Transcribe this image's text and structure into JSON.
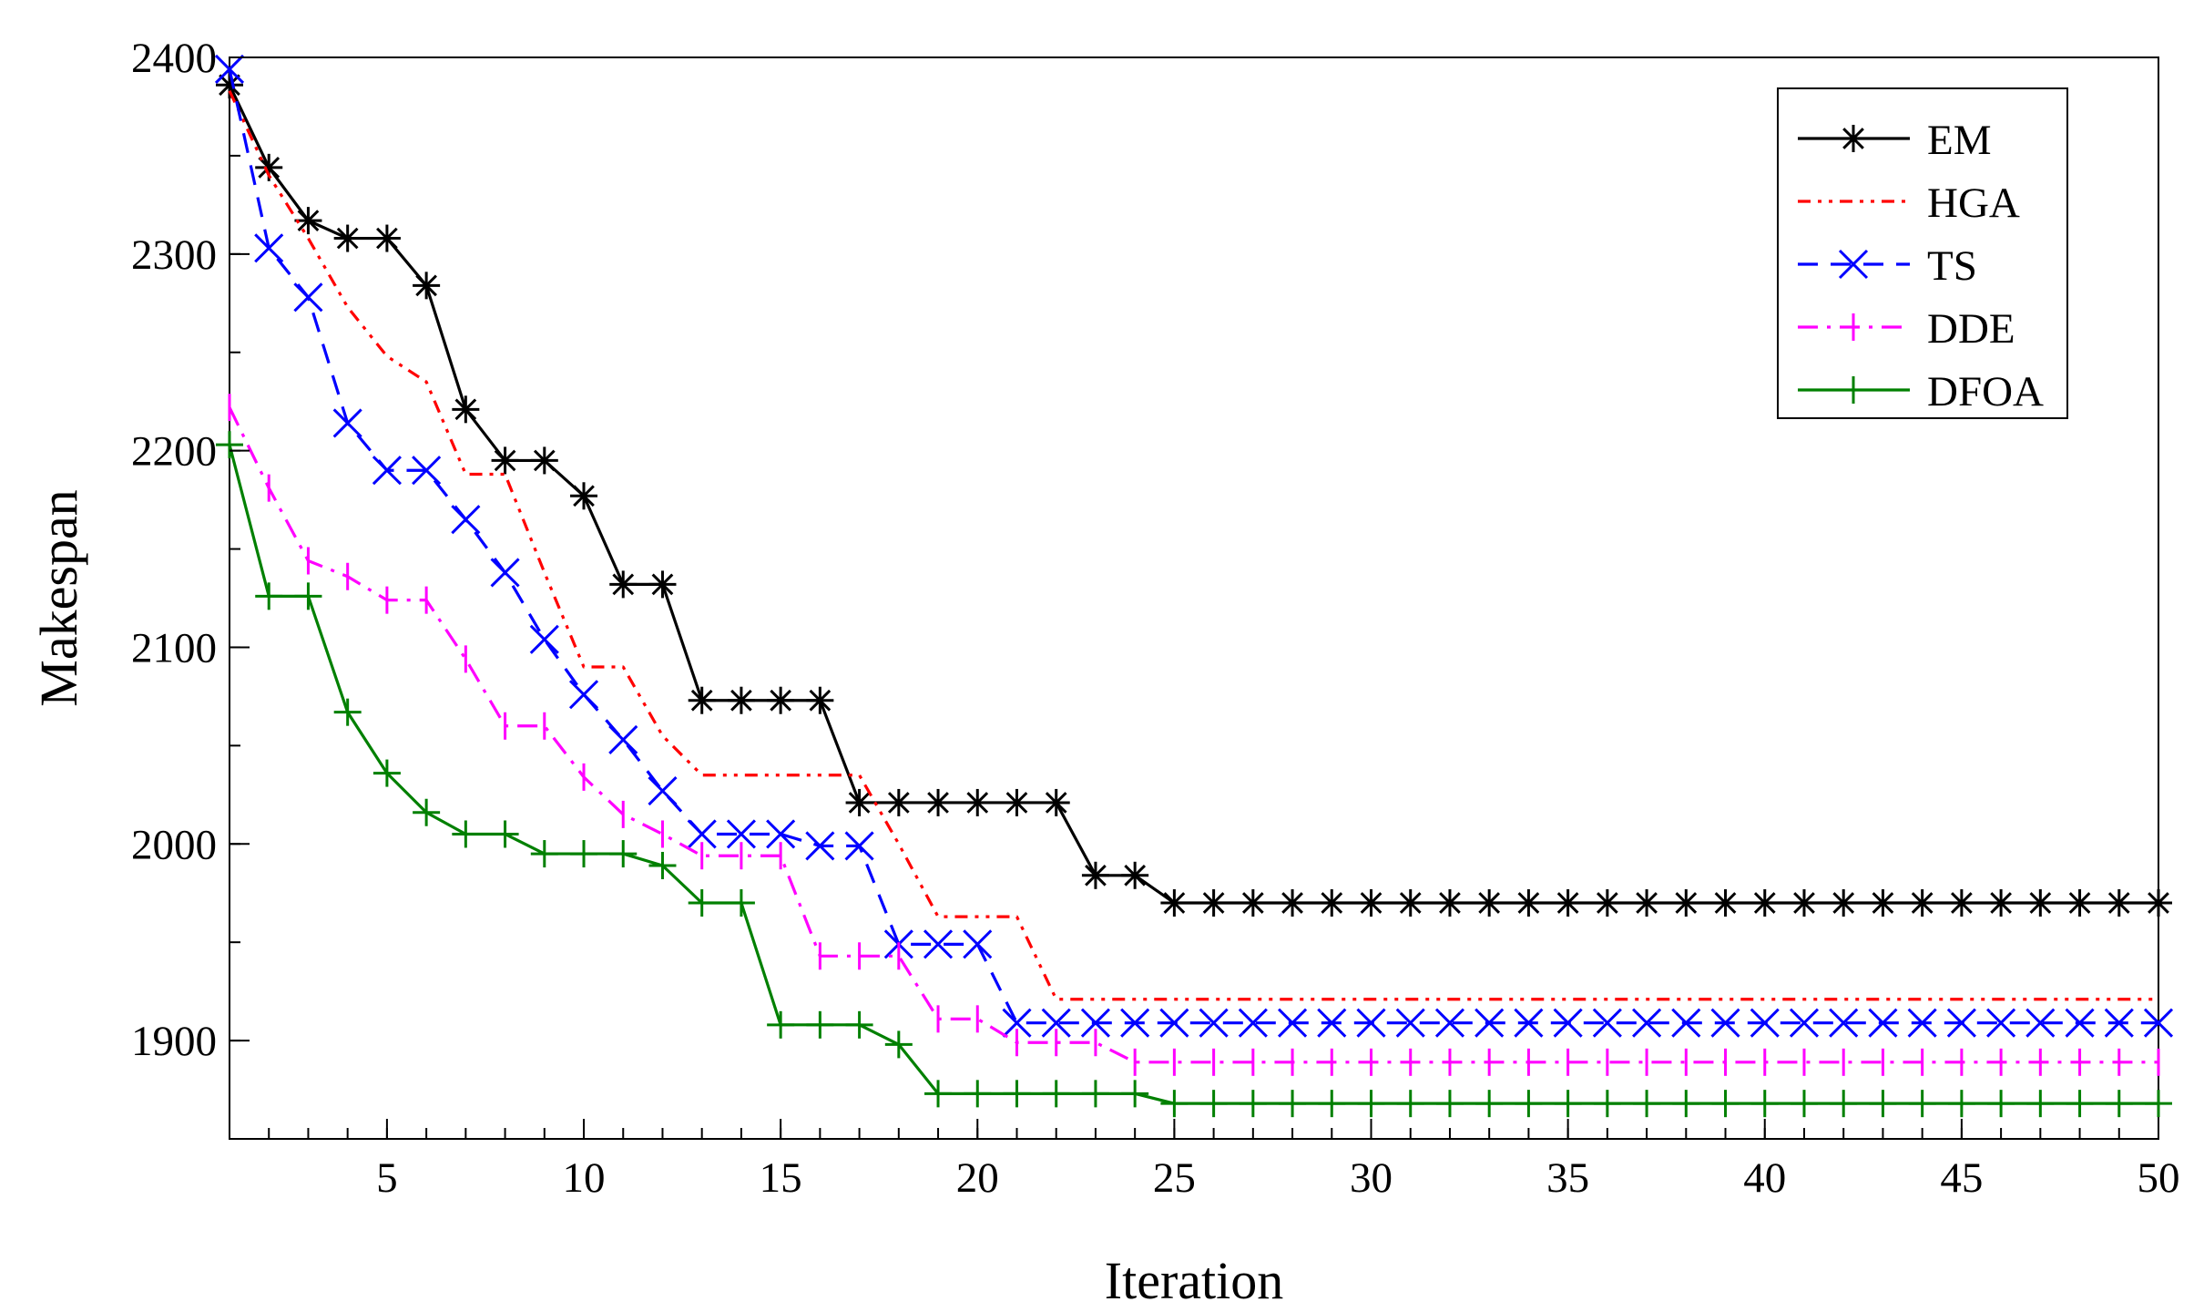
{
  "chart_data": {
    "type": "line",
    "title": "",
    "xlabel": "Iteration",
    "ylabel": "Makespan",
    "xlim": [
      1,
      50
    ],
    "ylim": [
      1850,
      2400
    ],
    "xticks": [
      5,
      10,
      15,
      20,
      25,
      30,
      35,
      40,
      45,
      50
    ],
    "xtick_labels": [
      "5",
      "10",
      "15",
      "20",
      "25",
      "30",
      "35",
      "40",
      "45",
      "50"
    ],
    "yticks": [
      1900,
      2000,
      2100,
      2200,
      2300,
      2400
    ],
    "ytick_labels": [
      "1900",
      "2000",
      "2100",
      "2200",
      "2300",
      "2400"
    ],
    "legend_position": "top-right",
    "x": [
      1,
      2,
      3,
      4,
      5,
      6,
      7,
      8,
      9,
      10,
      11,
      12,
      13,
      14,
      15,
      16,
      17,
      18,
      19,
      20,
      21,
      22,
      23,
      24,
      25,
      26,
      27,
      28,
      29,
      30,
      31,
      32,
      33,
      34,
      35,
      36,
      37,
      38,
      39,
      40,
      41,
      42,
      43,
      44,
      45,
      46,
      47,
      48,
      49,
      50
    ],
    "series": [
      {
        "name": "EM",
        "color": "#000000",
        "line_style": "solid",
        "marker": "asterisk",
        "values": [
          2386,
          2344,
          2317,
          2308,
          2308,
          2284,
          2221,
          2195,
          2195,
          2177,
          2132,
          2132,
          2073,
          2073,
          2073,
          2073,
          2021,
          2021,
          2021,
          2021,
          2021,
          2021,
          1984,
          1984,
          1970,
          1970,
          1970,
          1970,
          1970,
          1970,
          1970,
          1970,
          1970,
          1970,
          1970,
          1970,
          1970,
          1970,
          1970,
          1970,
          1970,
          1970,
          1970,
          1970,
          1970,
          1970,
          1970,
          1970,
          1970,
          1970
        ]
      },
      {
        "name": "HGA",
        "color": "#ff0000",
        "line_style": "dash-dot-dot",
        "marker": "none",
        "values": [
          2383,
          2340,
          2308,
          2273,
          2248,
          2235,
          2188,
          2188,
          2138,
          2090,
          2090,
          2055,
          2035,
          2035,
          2035,
          2035,
          2035,
          2000,
          1963,
          1963,
          1963,
          1921,
          1921,
          1921,
          1921,
          1921,
          1921,
          1921,
          1921,
          1921,
          1921,
          1921,
          1921,
          1921,
          1921,
          1921,
          1921,
          1921,
          1921,
          1921,
          1921,
          1921,
          1921,
          1921,
          1921,
          1921,
          1921,
          1921,
          1921,
          1921
        ]
      },
      {
        "name": "TS",
        "color": "#0000ff",
        "line_style": "dashed",
        "marker": "cross",
        "values": [
          2394,
          2303,
          2278,
          2214,
          2190,
          2190,
          2165,
          2138,
          2104,
          2076,
          2053,
          2027,
          2005,
          2005,
          2005,
          1999,
          1999,
          1949,
          1949,
          1949,
          1909,
          1909,
          1909,
          1909,
          1909,
          1909,
          1909,
          1909,
          1909,
          1909,
          1909,
          1909,
          1909,
          1909,
          1909,
          1909,
          1909,
          1909,
          1909,
          1909,
          1909,
          1909,
          1909,
          1909,
          1909,
          1909,
          1909,
          1909,
          1909,
          1909
        ]
      },
      {
        "name": "DDE",
        "color": "#ff00ff",
        "line_style": "dash-dot",
        "marker": "tick",
        "values": [
          2222,
          2181,
          2144,
          2136,
          2124,
          2124,
          2094,
          2060,
          2060,
          2034,
          2015,
          2005,
          1994,
          1994,
          1994,
          1943,
          1943,
          1943,
          1911,
          1911,
          1899,
          1899,
          1899,
          1889,
          1889,
          1889,
          1889,
          1889,
          1889,
          1889,
          1889,
          1889,
          1889,
          1889,
          1889,
          1889,
          1889,
          1889,
          1889,
          1889,
          1889,
          1889,
          1889,
          1889,
          1889,
          1889,
          1889,
          1889,
          1889,
          1889
        ]
      },
      {
        "name": "DFOA",
        "color": "#008000",
        "line_style": "solid",
        "marker": "plus",
        "values": [
          2203,
          2126,
          2126,
          2067,
          2036,
          2016,
          2005,
          2005,
          1995,
          1995,
          1995,
          1989,
          1970,
          1970,
          1908,
          1908,
          1908,
          1898,
          1873,
          1873,
          1873,
          1873,
          1873,
          1873,
          1868,
          1868,
          1868,
          1868,
          1868,
          1868,
          1868,
          1868,
          1868,
          1868,
          1868,
          1868,
          1868,
          1868,
          1868,
          1868,
          1868,
          1868,
          1868,
          1868,
          1868,
          1868,
          1868,
          1868,
          1868,
          1868
        ]
      }
    ]
  }
}
